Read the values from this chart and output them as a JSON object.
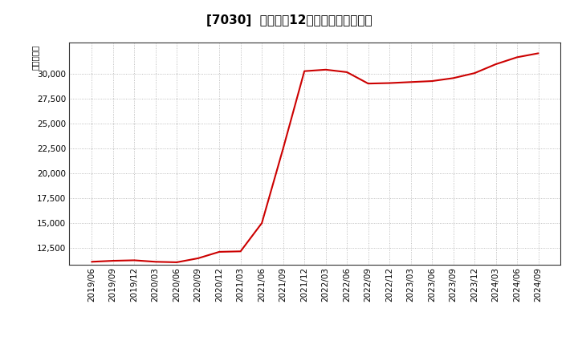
{
  "title": "[7030]  売上高の12か月移動合計の推移",
  "ylabel": "（百万円）",
  "line_color": "#cc0000",
  "background_color": "#ffffff",
  "plot_bg_color": "#ffffff",
  "grid_color": "#999999",
  "dates": [
    "2019/06",
    "2019/09",
    "2019/12",
    "2020/03",
    "2020/06",
    "2020/09",
    "2020/12",
    "2021/03",
    "2021/06",
    "2021/09",
    "2021/12",
    "2022/03",
    "2022/06",
    "2022/09",
    "2022/12",
    "2023/03",
    "2023/06",
    "2023/09",
    "2023/12",
    "2024/03",
    "2024/06",
    "2024/09"
  ],
  "values": [
    11100,
    11200,
    11250,
    11100,
    11050,
    11450,
    12100,
    12150,
    15000,
    22500,
    30300,
    30450,
    30200,
    29050,
    29100,
    29200,
    29300,
    29600,
    30100,
    31000,
    31700,
    32100
  ],
  "yticks": [
    12500,
    15000,
    17500,
    20000,
    22500,
    25000,
    27500,
    30000
  ],
  "ylim": [
    10800,
    33200
  ],
  "title_fontsize": 11,
  "axis_fontsize": 7.5
}
